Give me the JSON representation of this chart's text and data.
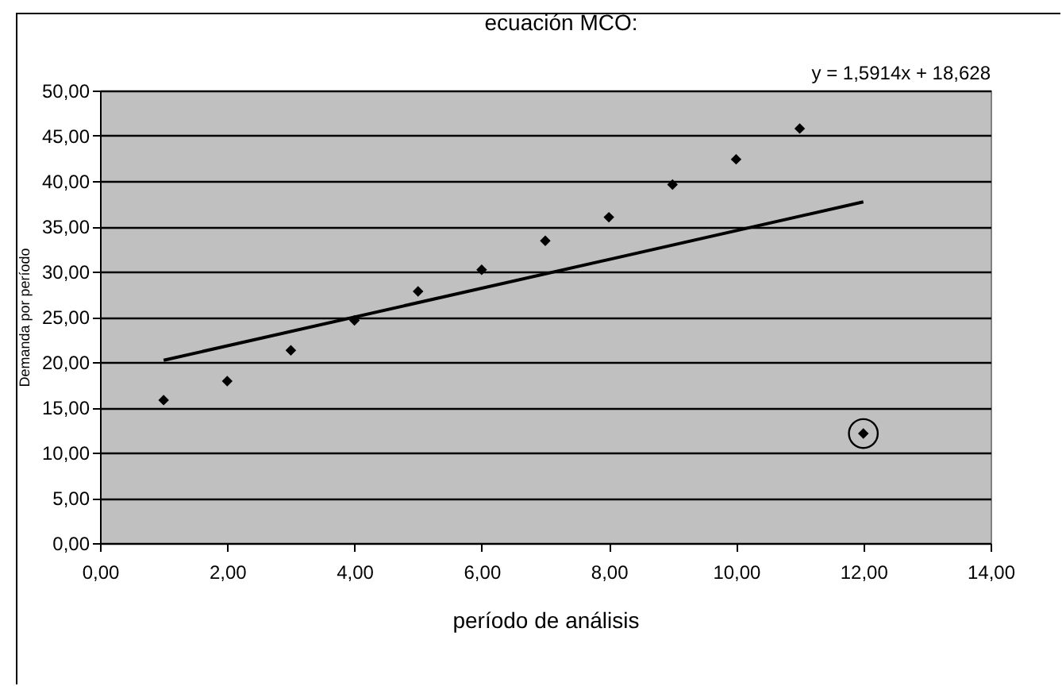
{
  "chart_data": {
    "type": "scatter",
    "title": "ecuación MCO:",
    "xlabel": "período de análisis",
    "ylabel": "Demanda por período",
    "annotations": [
      "y = 1,5914x + 18,628"
    ],
    "series": [
      {
        "color": "#000000",
        "marker": "diamond",
        "x": [
          1,
          2,
          3,
          4,
          5,
          6,
          7,
          8,
          9,
          10,
          11,
          12
        ],
        "values": [
          15.8,
          17.9,
          21.3,
          24.6,
          27.8,
          30.2,
          33.4,
          36.0,
          39.6,
          42.4,
          45.8,
          12.1
        ]
      },
      {
        "type": "line",
        "color": "#000000",
        "line_style": "solid",
        "x": [
          1,
          12
        ],
        "values": [
          20.2,
          37.7
        ]
      }
    ],
    "xlim": [
      0,
      14
    ],
    "ylim": [
      0,
      50
    ],
    "xticks": [
      {
        "value": 0,
        "label": "0,00"
      },
      {
        "value": 2,
        "label": "2,00"
      },
      {
        "value": 4,
        "label": "4,00"
      },
      {
        "value": 6,
        "label": "6,00"
      },
      {
        "value": 8,
        "label": "8,00"
      },
      {
        "value": 10,
        "label": "10,00"
      },
      {
        "value": 12,
        "label": "12,00"
      },
      {
        "value": 14,
        "label": "14,00"
      }
    ],
    "yticks": [
      {
        "value": 0,
        "label": "0,00"
      },
      {
        "value": 5,
        "label": "5,00"
      },
      {
        "value": 10,
        "label": "10,00"
      },
      {
        "value": 15,
        "label": "15,00"
      },
      {
        "value": 20,
        "label": "20,00"
      },
      {
        "value": 25,
        "label": "25,00"
      },
      {
        "value": 30,
        "label": "30,00"
      },
      {
        "value": 35,
        "label": "35,00"
      },
      {
        "value": 40,
        "label": "40,00"
      },
      {
        "value": 45,
        "label": "45,00"
      },
      {
        "value": 50,
        "label": "50,00"
      }
    ],
    "grid": "y"
  }
}
